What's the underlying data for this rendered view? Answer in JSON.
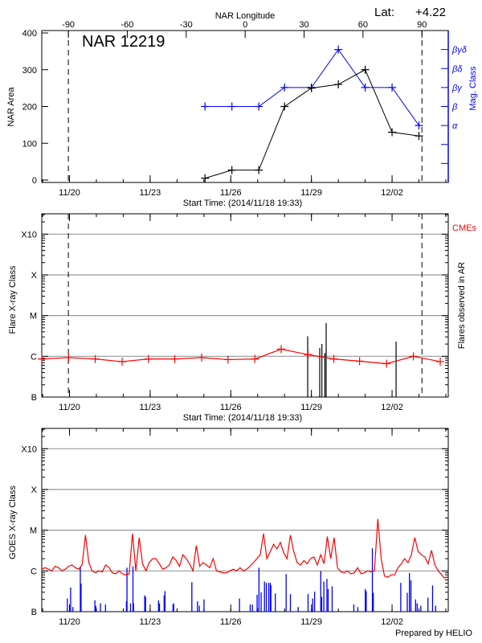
{
  "footer": "Prepared by HELIO",
  "colors": {
    "area": "#000000",
    "mag_class": "#0000ff",
    "flare_line": "#ff0000",
    "flare_bars": "#000000",
    "goes_long": "#ff0000",
    "goes_short": "#0000ff",
    "cme": "#ff0000",
    "grid": "#999999"
  },
  "chart_data": [
    {
      "type": "line",
      "title": "NAR 12219",
      "lat_label": "Lat:",
      "lat_value": "+4.22",
      "top_axis_label": "NAR Longitude",
      "longitude_ticks": [
        "-90",
        "-60",
        "-30",
        "0",
        "30",
        "60",
        "90"
      ],
      "longitude_range_dates": [
        "11/19 23:00",
        "12/03 02:40"
      ],
      "xlabel": "Start Time: (2014/11/18 19:33)",
      "ylabel": "NAR Area",
      "y2label": "Mag. Class",
      "xlim": [
        "11/18 23:15",
        "12/04 02:10"
      ],
      "x_ticks": [
        "11/20",
        "11/23",
        "11/26",
        "11/29",
        "12/02"
      ],
      "ylim": [
        0,
        400
      ],
      "y_ticks": [
        "0",
        "100",
        "200",
        "300",
        "400"
      ],
      "mag_class_ticks": [
        "α",
        "β",
        "βγ",
        "βδ",
        "βγδ"
      ],
      "dashed_lines": [
        "11/19 23:00",
        "12/03 02:40"
      ],
      "x": [
        "11/25 01:00",
        "11/26 01:00",
        "11/27 01:00",
        "11/28 00:00",
        "11/29 00:00",
        "11/30 00:00",
        "12/01 00:00",
        "12/02 00:00",
        "12/03 00:00"
      ],
      "area": [
        5,
        27,
        27,
        200,
        250,
        260,
        300,
        130,
        120
      ],
      "mag_class": [
        "β",
        "β",
        "β",
        "βγ",
        "βγ",
        "βγδ",
        "βγ",
        "βγ",
        "α"
      ]
    },
    {
      "type": "line",
      "xlabel": "Start Time: (2014/11/18 19:33)",
      "ylabel": "Flare X-ray Class",
      "y2label": "Flares observed in AR",
      "cme_label": "CMEs",
      "xlim": [
        "11/18 23:15",
        "12/04 02:10"
      ],
      "x_ticks": [
        "11/20",
        "11/23",
        "11/26",
        "11/29",
        "12/02"
      ],
      "y_scale": "log",
      "ylim": [
        "B1.0",
        "X31.6"
      ],
      "y_ticks": [
        "B",
        "C",
        "M",
        "X",
        "X10"
      ],
      "grid": true,
      "dashed_lines": [
        "11/19 23:00",
        "12/03 02:40"
      ],
      "line": {
        "x": [
          "11/18 23:15",
          "11/19 23:15",
          "11/20 23:00",
          "11/21 23:00",
          "11/22 22:30",
          "11/23 22:00",
          "11/24 22:00",
          "11/25 21:30",
          "11/26 21:30",
          "11/27 21:00",
          "11/28 21:00",
          "11/29 20:00",
          "11/30 19:00",
          "12/01 19:00",
          "12/02 19:00",
          "12/03 19:00"
        ],
        "y": [
          "B8.6",
          "B9.3",
          "B8.6",
          "B7.4",
          "B8.6",
          "B8.6",
          "B9.3",
          "B8.3",
          "B8.6",
          "C1.5",
          "C1.1",
          "B8.6",
          "B7.6",
          "B6.6",
          "C1.0",
          "B7.4"
        ]
      },
      "flares": [
        [
          "11/28 20:40",
          "C3.1"
        ],
        [
          "11/29 07:25",
          "C1.6"
        ],
        [
          "11/29 09:20",
          "C2.0"
        ],
        [
          "11/29 12:00",
          "C1.2"
        ],
        [
          "11/29 13:10",
          "C6.6"
        ],
        [
          "12/02 03:35",
          "C2.3"
        ]
      ]
    },
    {
      "type": "line",
      "ylabel": "GOES X-ray Class",
      "xlim": [
        "11/18 23:15",
        "12/04 02:10"
      ],
      "x_ticks": [
        "11/20",
        "11/23",
        "11/26",
        "11/29",
        "12/02"
      ],
      "y_scale": "log",
      "ylim": [
        "B1.0",
        "X31.6"
      ],
      "y_ticks": [
        "B",
        "C",
        "M",
        "X",
        "X10"
      ],
      "grid": true,
      "goes_long": {
        "start": "11/18 23:15",
        "interval_hours": 3,
        "values": [
          "C1.1",
          "C1.2",
          "C1.1",
          "C1.0",
          "C1.3",
          "C1.2",
          "C1.0",
          "C1.1",
          "C1.3",
          "C1.4",
          "C1.2",
          "C1.1",
          "C1.4",
          "C7.6",
          "C1.6",
          "C1.0",
          "B9.0",
          "C1.0",
          "B9.5",
          "C1.4",
          "C1.2",
          "B9.0",
          "B8.5",
          "C1.0",
          "B8.5",
          "B8.0",
          "B8.5",
          "C8.3",
          "C1.0",
          "C6.6",
          "C1.5",
          "C1.0",
          "C1.6",
          "C2.0",
          "C2.0",
          "C1.5",
          "C1.1",
          "C1.2",
          "C1.4",
          "C2.2",
          "C1.8",
          "C1.3",
          "C2.5",
          "C2.0",
          "C1.5",
          "C1.0",
          "C4.2",
          "C1.3",
          "C1.6",
          "C1.4",
          "C1.2",
          "C2.0",
          "C1.0",
          "B9.5",
          "B9.0",
          "B9.0",
          "C1.0",
          "C1.1",
          "C1.0",
          "C1.2",
          "C1.0",
          "C1.1",
          "C1.3",
          "C1.6",
          "C2.0",
          "C2.5",
          "C8.3",
          "C2.0",
          "C3.0",
          "C4.5",
          "C3.5",
          "C5.0",
          "C2.8",
          "C2.0",
          "C7.6",
          "C3.0",
          "C1.6",
          "C1.4",
          "C1.8",
          "C1.5",
          "C2.0",
          "C2.2",
          "C1.4",
          "C2.5",
          "C1.5",
          "C7.0",
          "C2.0",
          "C6.6",
          "C1.2",
          "B9.5",
          "B9.0",
          "C1.0",
          "B8.5",
          "B9.0",
          "C1.2",
          "B8.5",
          "B9.0",
          "C1.0",
          "B9.5",
          "C1.0",
          "M1.9",
          "C2.0",
          "B7.5",
          "B7.0",
          "B8.0",
          "B8.0",
          "C1.2",
          "C1.5",
          "C2.0",
          "C1.6",
          "C2.5",
          "C6.6",
          "C3.0",
          "C2.5",
          "C2.2",
          "C1.5",
          "C3.2",
          "C1.4",
          "C1.0",
          "B8.0",
          "B6.5",
          "B6.0",
          "C1.0"
        ]
      },
      "goes_short_bars": [
        [
          "11/19 22:05",
          "B2.1"
        ],
        [
          "11/20 01:00",
          "B3.9"
        ],
        [
          "11/20 03:00",
          "B1.3"
        ],
        [
          "11/20 09:40",
          "C1.3"
        ],
        [
          "11/20 10:20",
          "B4.9"
        ],
        [
          "11/20 22:40",
          "B1.9"
        ],
        [
          "11/20 23:30",
          "B1.4"
        ],
        [
          "11/21 03:40",
          "B1.6"
        ],
        [
          "11/21 08:10",
          "B1.5"
        ],
        [
          "11/22 02:50",
          "B1.8"
        ],
        [
          "11/22 03:20",
          "C1.2"
        ],
        [
          "11/22 06:30",
          "B1.6"
        ],
        [
          "11/22 08:40",
          "C1.3"
        ],
        [
          "11/22 09:10",
          "B1.6"
        ],
        [
          "11/22 19:10",
          "B2.5"
        ],
        [
          "11/22 19:55",
          "B2.3"
        ],
        [
          "11/23 07:30",
          "B1.9"
        ],
        [
          "11/23 08:20",
          "B1.6"
        ],
        [
          "11/23 12:30",
          "B2.5"
        ],
        [
          "11/23 13:15",
          "B3.2"
        ],
        [
          "11/23 20:25",
          "B1.5"
        ],
        [
          "11/23 21:00",
          "B1.6"
        ],
        [
          "11/24 13:15",
          "B5.3"
        ],
        [
          "11/24 18:15",
          "B1.8"
        ],
        [
          "11/24 19:55",
          "B1.4"
        ],
        [
          "11/25 00:05",
          "B2.0"
        ],
        [
          "11/26 07:45",
          "B2.1"
        ],
        [
          "11/26 17:20",
          "B1.5"
        ],
        [
          "11/26 19:20",
          "B1.5"
        ],
        [
          "11/26 23:30",
          "B2.6"
        ],
        [
          "11/27 01:10",
          "C1.2"
        ],
        [
          "11/27 03:05",
          "B3.0"
        ],
        [
          "11/27 06:05",
          "B5.5"
        ],
        [
          "11/27 07:45",
          "B5.1"
        ],
        [
          "11/27 09:55",
          "B5.1"
        ],
        [
          "11/27 11:20",
          "B5.1"
        ],
        [
          "11/27 11:50",
          "B4.4"
        ],
        [
          "11/27 15:45",
          "B2.8"
        ],
        [
          "11/28 01:25",
          "B8.4"
        ],
        [
          "11/28 05:15",
          "B2.7"
        ],
        [
          "11/28 12:10",
          "B1.3"
        ],
        [
          "11/28 21:00",
          "B2.7"
        ],
        [
          "11/29 01:10",
          "B2.1"
        ],
        [
          "11/29 02:50",
          "B3.1"
        ],
        [
          "11/29 08:20",
          "C1.0"
        ],
        [
          "11/29 09:10",
          "B2.3"
        ],
        [
          "11/29 11:05",
          "B5.5"
        ],
        [
          "11/29 13:50",
          "B6.4"
        ],
        [
          "11/29 14:55",
          "B3.6"
        ],
        [
          "11/29 18:30",
          "B4.2"
        ],
        [
          "11/30 13:50",
          "B1.5"
        ],
        [
          "11/30 17:25",
          "B1.3"
        ],
        [
          "12/01 00:05",
          "B3.6"
        ],
        [
          "12/01 00:55",
          "B3.2"
        ],
        [
          "12/01 06:25",
          "C3.6"
        ],
        [
          "12/01 07:15",
          "B2.9"
        ],
        [
          "12/02 07:45",
          "B5.1"
        ],
        [
          "12/02 13:35",
          "B2.9"
        ],
        [
          "12/02 15:30",
          "B8.9"
        ],
        [
          "12/02 16:50",
          "B5.9"
        ],
        [
          "12/02 21:00",
          "B2.0"
        ],
        [
          "12/02 22:25",
          "B1.6"
        ],
        [
          "12/03 01:40",
          "B1.4"
        ],
        [
          "12/03 08:00",
          "B2.2"
        ],
        [
          "12/03 12:10",
          "B4.4"
        ],
        [
          "12/03 14:55",
          "B1.4"
        ]
      ]
    }
  ]
}
